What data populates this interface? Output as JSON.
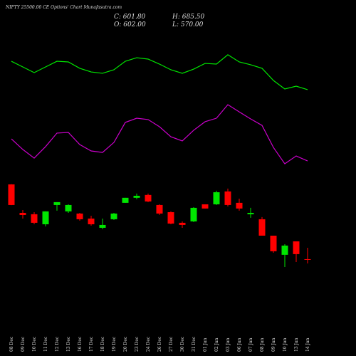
{
  "chart_data": {
    "type": "candlestick",
    "title": "NIFTY 25500.00  CE Options' Chart Munafasutra.com",
    "summary": [
      "C: 601.80",
      "H: 685.50",
      "O: 602.00",
      "L: 570.00"
    ],
    "categories": [
      "08 Dec",
      "09 Dec",
      "10 Dec",
      "11 Dec",
      "12 Dec",
      "13 Dec",
      "16 Dec",
      "17 Dec",
      "18 Dec",
      "19 Dec",
      "20 Dec",
      "23 Dec",
      "24 Dec",
      "26 Dec",
      "27 Dec",
      "30 Dec",
      "31 Dec",
      "01 Jan",
      "02 Jan",
      "03 Jan",
      "06 Jan",
      "07 Jan",
      "08 Jan",
      "09 Jan",
      "10 Jan",
      "13 Jan",
      "14 Jan"
    ],
    "open": [
      1153,
      943,
      933,
      859,
      1001,
      954,
      938,
      901,
      833,
      896,
      1017,
      1054,
      1075,
      1001,
      948,
      870,
      880,
      1006,
      1006,
      1101,
      1017,
      933,
      896,
      775,
      634,
      733,
      602
    ],
    "high": [
      1155,
      964,
      948,
      954,
      1022,
      1006,
      943,
      922,
      901,
      943,
      1054,
      1085,
      1085,
      1006,
      954,
      880,
      985,
      1006,
      1106,
      1122,
      1048,
      980,
      912,
      775,
      712,
      733,
      685.5
    ],
    "low": [
      1000,
      901,
      859,
      843,
      959,
      943,
      886,
      849,
      823,
      891,
      1017,
      1043,
      1022,
      928,
      859,
      833,
      875,
      975,
      1001,
      990,
      959,
      907,
      775,
      649,
      544,
      581,
      570
    ],
    "close": [
      1001,
      927,
      870,
      954,
      1022,
      1001,
      896,
      859,
      854,
      938,
      1054,
      1069,
      1027,
      938,
      864,
      854,
      980,
      975,
      1095,
      1001,
      975,
      943,
      775,
      660,
      702,
      639,
      601.8
    ],
    "up_color": "#00e600",
    "down_color": "#ff0000",
    "ylim": [
      500,
      1200
    ],
    "y2lim": [
      0,
      100
    ],
    "series": [
      {
        "color": "#00e600",
        "axis": "y2",
        "values": [
          86.3,
          82.1,
          77.9,
          82.1,
          86.3,
          85.8,
          81.1,
          78.4,
          77.4,
          80.0,
          86.3,
          88.9,
          87.9,
          84.2,
          80.0,
          77.4,
          80.5,
          84.7,
          84.2,
          91.1,
          85.8,
          83.7,
          81.1,
          72.1,
          65.8,
          67.9,
          65.3
        ]
      },
      {
        "color": "#cc00cc",
        "axis": "y2",
        "values": [
          28.9,
          21.1,
          14.7,
          23.2,
          33.2,
          33.7,
          24.7,
          20.0,
          18.9,
          26.3,
          41.1,
          44.2,
          43.2,
          37.9,
          30.5,
          27.4,
          35.3,
          41.6,
          44.2,
          54.2,
          48.9,
          43.7,
          38.9,
          22.6,
          10.5,
          16.3,
          12.6
        ]
      }
    ]
  }
}
